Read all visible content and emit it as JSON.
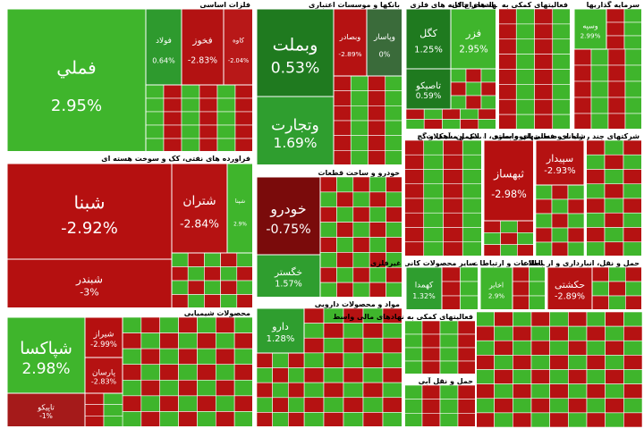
{
  "sectors": [
    {
      "title": "فلزات اساسی",
      "tiles": [
        {
          "name": "فملي",
          "change": "2.95%",
          "color": "#3fb52c"
        },
        {
          "name": "فولاد",
          "change": "0.64%",
          "color": "#2e9a2e"
        },
        {
          "name": "فخوز",
          "change": "-2.83%",
          "color": "#b31212"
        },
        {
          "name": "کاوه",
          "change": "-2.04%",
          "color": "#b81818"
        }
      ]
    },
    {
      "title": "فراورده های نفتی، کک و سوخت هسته ای",
      "tiles": [
        {
          "name": "شبنا",
          "change": "-2.92%",
          "color": "#b51010"
        },
        {
          "name": "شبندر",
          "change": "-3%",
          "color": "#b51010"
        },
        {
          "name": "شتران",
          "change": "-2.84%",
          "color": "#b51212"
        },
        {
          "name": "شپنا",
          "change": "2.9%",
          "color": "#3fb52c"
        }
      ]
    },
    {
      "title": "محصولات شیمیایی",
      "tiles": [
        {
          "name": "شپاکسا",
          "change": "2.98%",
          "color": "#3fb52c"
        },
        {
          "name": "شیراز",
          "change": "-2.99%",
          "color": "#b51010"
        },
        {
          "name": "پارسان",
          "change": "-2.83%",
          "color": "#b51212"
        },
        {
          "name": "تاپیکو",
          "change": "-1%",
          "color": "#a51a1a"
        }
      ]
    },
    {
      "title": "بانکها و موسسات اعتباری",
      "tiles": [
        {
          "name": "وبملت",
          "change": "0.53%",
          "color": "#1f7a1f"
        },
        {
          "name": "وتجارت",
          "change": "1.69%",
          "color": "#2f9e2f"
        },
        {
          "name": "وبصادر",
          "change": "-2.89%",
          "color": "#b51212"
        },
        {
          "name": "وپاسار",
          "change": "0%",
          "color": "#3a6b3a"
        }
      ]
    },
    {
      "title": "خودرو و ساخت قطعات",
      "tiles": [
        {
          "name": "خودرو",
          "change": "-0.75%",
          "color": "#7a0b0b"
        },
        {
          "name": "خگستر",
          "change": "1.57%",
          "color": "#2f9e2f"
        }
      ]
    },
    {
      "title": "مواد و محصولات دارویی",
      "tiles": [
        {
          "name": "دارو",
          "change": "1.28%",
          "color": "#2f9e2f"
        }
      ]
    },
    {
      "title": "استخراج کانه های فلزی",
      "tiles": [
        {
          "name": "کگل",
          "change": "1.25%",
          "color": "#1f7a1f"
        },
        {
          "name": "فزر",
          "change": "2.95%",
          "color": "#3fb52c"
        },
        {
          "name": "تاصیکو",
          "change": "0.59%",
          "color": "#1f7a1f"
        }
      ]
    },
    {
      "title": "فعالیتهای کمکی به نهادهای مالی",
      "tiles": []
    },
    {
      "title": "سرمایه گذاریها",
      "tiles": [
        {
          "name": "وسپه",
          "change": "2.99%",
          "color": "#3fb52c"
        }
      ]
    },
    {
      "title": "سیمان، آهک و گچ",
      "tiles": []
    },
    {
      "title": "انبوه سازی، املاک و مستغلات",
      "tiles": [
        {
          "name": "ثبهساز",
          "change": "-2.98%",
          "color": "#b51010"
        }
      ]
    },
    {
      "title": "رایانه و فعالیتهای وابسته",
      "tiles": [
        {
          "name": "سپیدار",
          "change": "-2.93%",
          "color": "#b51212"
        }
      ]
    },
    {
      "title": "شرکتهای چند رشته ای صنعتی",
      "tiles": []
    },
    {
      "title": "سایر محصولات کانی غیرفلزی",
      "tiles": [
        {
          "name": "کهمدا",
          "change": "1.32%",
          "color": "#2f9e2f"
        }
      ]
    },
    {
      "title": "اطلاعات و ارتباطات",
      "tiles": [
        {
          "name": "اخابر",
          "change": "2.9%",
          "color": "#3fb52c"
        }
      ]
    },
    {
      "title": "حمل و نقل، انبارداری و ارتباطات",
      "tiles": [
        {
          "name": "حکشتی",
          "change": "-2.89%",
          "color": "#b51212"
        }
      ]
    },
    {
      "title": "فعالیتهای کمکی به نهادهای مالی واسط",
      "tiles": []
    },
    {
      "title": "حمل و نقل آبی",
      "tiles": []
    }
  ]
}
